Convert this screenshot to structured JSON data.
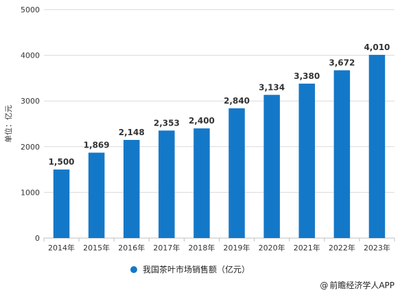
{
  "chart_data": {
    "type": "bar",
    "categories": [
      "2014年",
      "2015年",
      "2016年",
      "2017年",
      "2018年",
      "2019年",
      "2020年",
      "2021年",
      "2022年",
      "2023年"
    ],
    "series": [
      {
        "name": "我国茶叶市场销售额（亿元）",
        "values": [
          1500,
          1869,
          2148,
          2353,
          2400,
          2840,
          3134,
          3380,
          3672,
          4010
        ],
        "data_labels": [
          "1,500",
          "1,869",
          "2,148",
          "2,353",
          "2,400",
          "2,840",
          "3,134",
          "3,380",
          "3,672",
          "4,010"
        ]
      }
    ],
    "ylabel": "单位：亿元",
    "ylim": [
      0,
      5000
    ],
    "yticks": [
      0,
      1000,
      2000,
      3000,
      4000,
      5000
    ],
    "grid": true,
    "legend_position": "bottom",
    "colors": {
      "bar": "#1478c8",
      "grid": "#d9d9d9",
      "axis": "#bfbfbf",
      "text": "#333333"
    }
  },
  "credit": {
    "symbol": "@",
    "text": "前瞻经济学人APP"
  }
}
